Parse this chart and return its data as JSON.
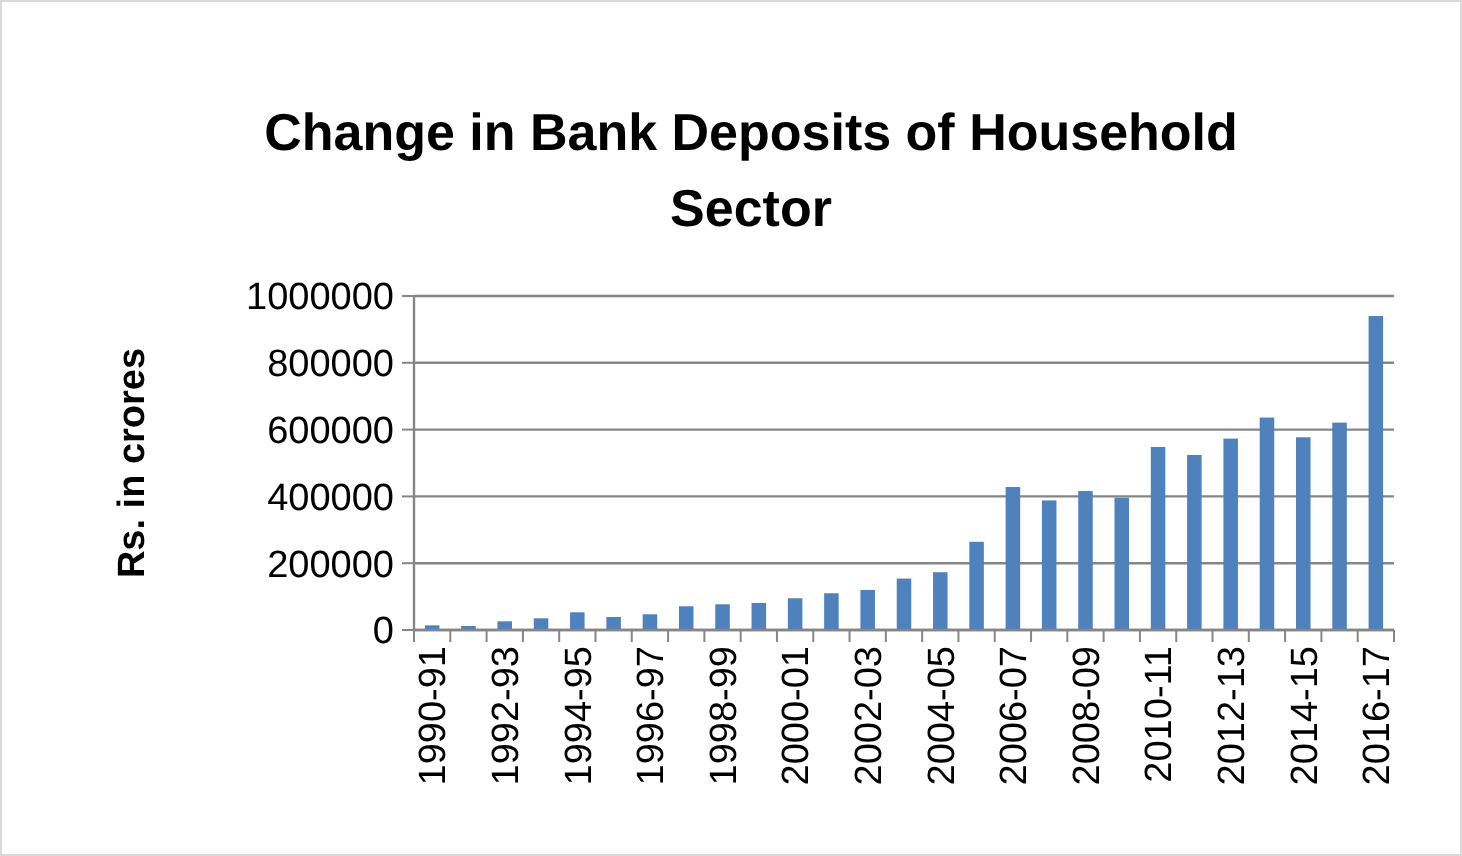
{
  "chart_data": {
    "type": "bar",
    "title": "Change in Bank Deposits of Household Sector",
    "ylabel": "Rs. in crores",
    "categories": [
      "1990-91",
      null,
      "1992-93",
      null,
      "1994-95",
      null,
      "1996-97",
      null,
      "1998-99",
      null,
      "2000-01",
      null,
      "2002-03",
      null,
      "2004-05",
      null,
      "2006-07",
      null,
      "2008-09",
      null,
      "2010-11",
      null,
      "2012-13",
      null,
      "2014-15",
      null,
      "2016-17"
    ],
    "values": [
      14000,
      12000,
      26000,
      35000,
      53000,
      39000,
      47000,
      71000,
      77000,
      81000,
      95000,
      110000,
      120000,
      154000,
      173000,
      264000,
      428000,
      388000,
      416000,
      396000,
      548000,
      524000,
      573000,
      636000,
      577000,
      621000,
      940000
    ],
    "color": "#4f81bd",
    "ylim": [
      0,
      1000000
    ],
    "yticks": [
      0,
      200000,
      400000,
      600000,
      800000,
      1000000
    ],
    "grid": "y"
  }
}
